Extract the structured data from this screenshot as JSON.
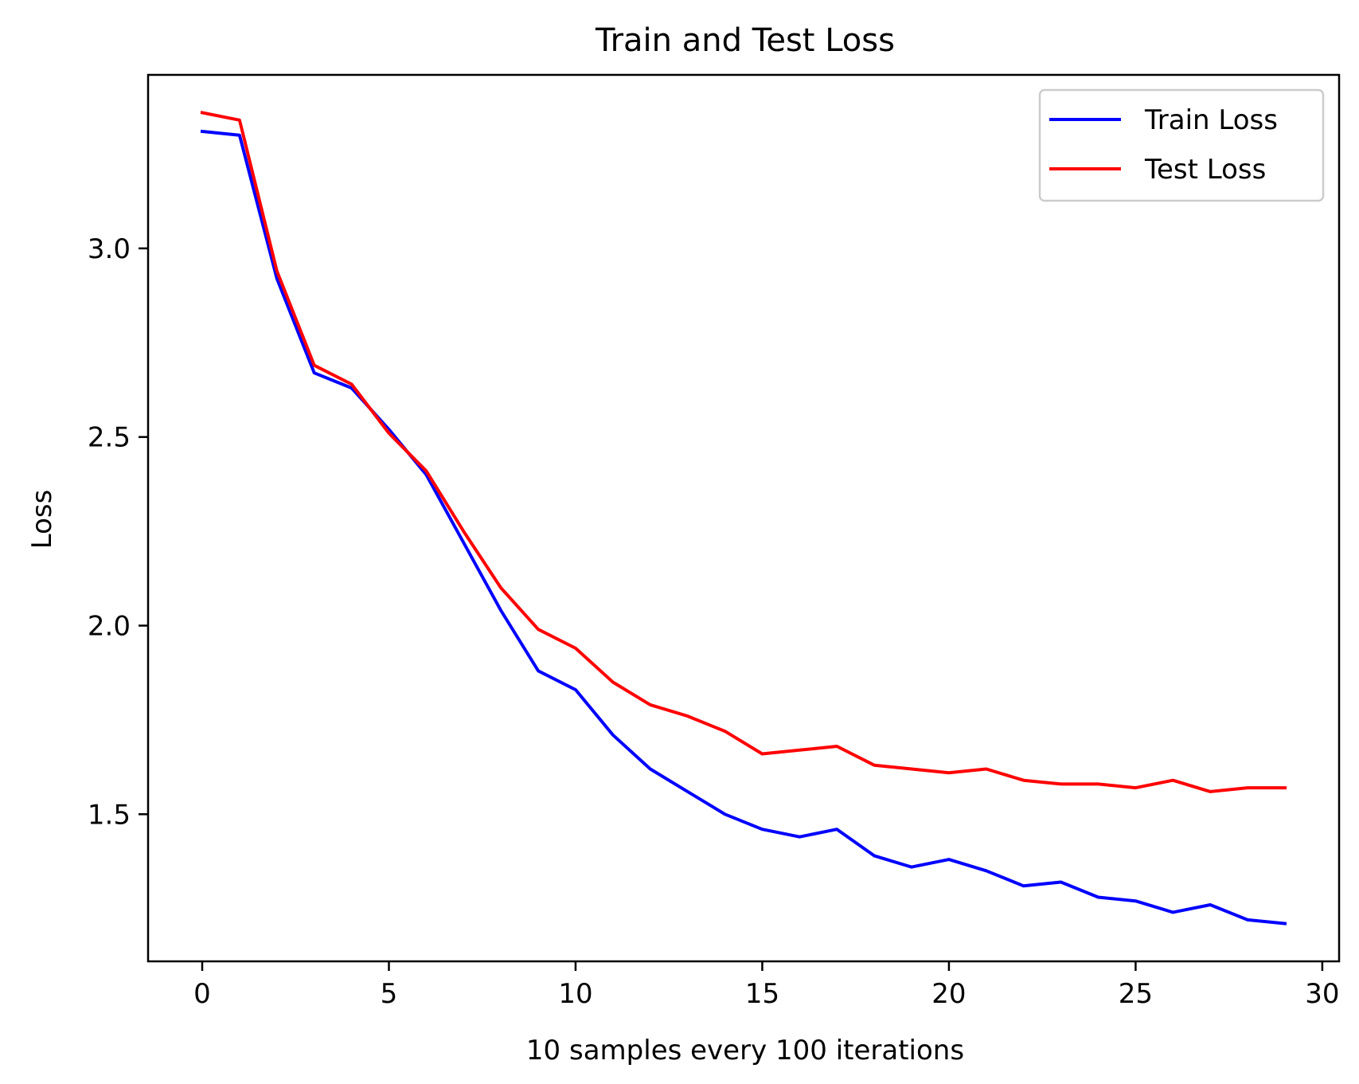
{
  "chart_data": {
    "type": "line",
    "title": "Train and Test Loss",
    "xlabel": "10 samples every 100 iterations",
    "ylabel": "Loss",
    "xlim": [
      -1.45,
      30.45
    ],
    "ylim": [
      1.11,
      3.46
    ],
    "xticks": [
      0,
      5,
      10,
      15,
      20,
      25,
      30
    ],
    "yticks": [
      1.5,
      2.0,
      2.5,
      3.0
    ],
    "xtick_labels": [
      "0",
      "5",
      "10",
      "15",
      "20",
      "25",
      "30"
    ],
    "ytick_labels": [
      "1.5",
      "2.0",
      "2.5",
      "3.0"
    ],
    "grid": false,
    "legend_position": "top-right",
    "x": [
      0,
      1,
      2,
      3,
      4,
      5,
      6,
      7,
      8,
      9,
      10,
      11,
      12,
      13,
      14,
      15,
      16,
      17,
      18,
      19,
      20,
      21,
      22,
      23,
      24,
      25,
      26,
      27,
      28,
      29
    ],
    "series": [
      {
        "name": "Train Loss",
        "color": "#0000ff",
        "values": [
          3.31,
          3.3,
          2.92,
          2.67,
          2.63,
          2.52,
          2.4,
          2.22,
          2.04,
          1.88,
          1.83,
          1.71,
          1.62,
          1.56,
          1.5,
          1.46,
          1.44,
          1.46,
          1.39,
          1.36,
          1.38,
          1.35,
          1.31,
          1.32,
          1.28,
          1.27,
          1.24,
          1.26,
          1.22,
          1.21
        ]
      },
      {
        "name": "Test Loss",
        "color": "#ff0000",
        "values": [
          3.36,
          3.34,
          2.94,
          2.69,
          2.64,
          2.51,
          2.41,
          2.25,
          2.1,
          1.99,
          1.94,
          1.85,
          1.79,
          1.76,
          1.72,
          1.66,
          1.67,
          1.68,
          1.63,
          1.62,
          1.61,
          1.62,
          1.59,
          1.58,
          1.58,
          1.57,
          1.59,
          1.56,
          1.57,
          1.57
        ]
      }
    ]
  }
}
